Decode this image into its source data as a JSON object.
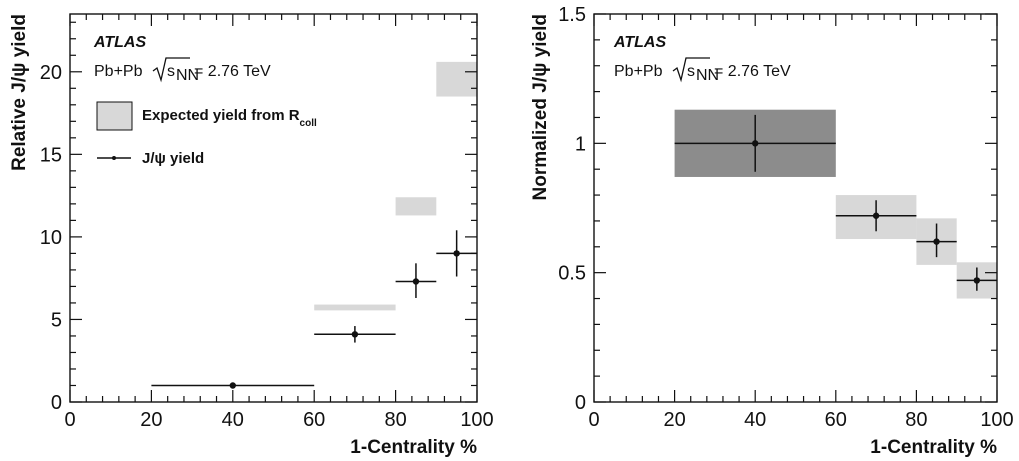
{
  "chart_data": [
    {
      "type": "scatter",
      "title": "",
      "experiment": "ATLAS",
      "collision_base": "Pb+Pb",
      "collision_energy": "= 2.76 TeV",
      "xlabel": "1-Centrality %",
      "ylabel": "Relative J/ψ yield",
      "xlim": [
        0,
        100
      ],
      "ylim": [
        0,
        23.5
      ],
      "xticks": [
        0,
        20,
        40,
        60,
        80,
        100
      ],
      "yticks": [
        0,
        5,
        10,
        15,
        20
      ],
      "grid": false,
      "legend_position": "top-left",
      "legend": [
        {
          "label": "Expected yield from R",
          "subscript": "coll",
          "kind": "box"
        },
        {
          "label": "J/ψ yield",
          "kind": "marker"
        }
      ],
      "box_color": "#d8d8d8",
      "boxes": [
        {
          "x_low": 60,
          "x_high": 80,
          "y_low": 5.55,
          "y_high": 5.9
        },
        {
          "x_low": 80,
          "x_high": 90,
          "y_low": 11.3,
          "y_high": 12.4
        },
        {
          "x_low": 90,
          "x_high": 100,
          "y_low": 18.5,
          "y_high": 20.6
        }
      ],
      "series": [
        {
          "points": [
            {
              "x": 40,
              "y": 1.0,
              "x_low": 20,
              "x_high": 60,
              "y_low": 0.95,
              "y_high": 1.05
            },
            {
              "x": 70,
              "y": 4.1,
              "x_low": 60,
              "x_high": 80,
              "y_low": 3.6,
              "y_high": 4.6
            },
            {
              "x": 85,
              "y": 7.3,
              "x_low": 80,
              "x_high": 90,
              "y_low": 6.3,
              "y_high": 8.4
            },
            {
              "x": 95,
              "y": 9.0,
              "x_low": 90,
              "x_high": 100,
              "y_low": 7.6,
              "y_high": 10.4
            }
          ]
        }
      ]
    },
    {
      "type": "scatter",
      "title": "",
      "experiment": "ATLAS",
      "collision_base": "Pb+Pb",
      "collision_energy": "= 2.76 TeV",
      "xlabel": "1-Centrality %",
      "ylabel": "Normalized J/ψ yield",
      "xlim": [
        0,
        100
      ],
      "ylim": [
        0,
        1.5
      ],
      "xticks": [
        0,
        20,
        40,
        60,
        80,
        100
      ],
      "yticks": [
        0,
        0.5,
        1,
        1.5
      ],
      "ytick_labels": [
        "0",
        "0.5",
        "1",
        "1.5"
      ],
      "grid": false,
      "boxes": [
        {
          "x_low": 20,
          "x_high": 60,
          "y_low": 0.87,
          "y_high": 1.13,
          "color": "#8c8c8c"
        },
        {
          "x_low": 60,
          "x_high": 80,
          "y_low": 0.63,
          "y_high": 0.8,
          "color": "#d8d8d8"
        },
        {
          "x_low": 80,
          "x_high": 90,
          "y_low": 0.53,
          "y_high": 0.71,
          "color": "#d8d8d8"
        },
        {
          "x_low": 90,
          "x_high": 100,
          "y_low": 0.4,
          "y_high": 0.54,
          "color": "#d8d8d8"
        }
      ],
      "series": [
        {
          "points": [
            {
              "x": 40,
              "y": 1.0,
              "x_low": 20,
              "x_high": 60,
              "y_low": 0.89,
              "y_high": 1.11
            },
            {
              "x": 70,
              "y": 0.72,
              "x_low": 60,
              "x_high": 80,
              "y_low": 0.66,
              "y_high": 0.78
            },
            {
              "x": 85,
              "y": 0.62,
              "x_low": 80,
              "x_high": 90,
              "y_low": 0.56,
              "y_high": 0.69
            },
            {
              "x": 95,
              "y": 0.47,
              "x_low": 90,
              "x_high": 100,
              "y_low": 0.43,
              "y_high": 0.52
            }
          ]
        }
      ]
    }
  ]
}
